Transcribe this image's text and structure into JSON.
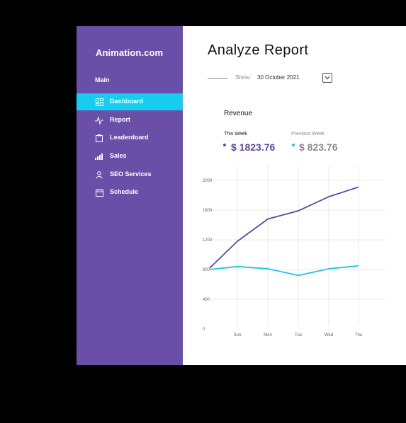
{
  "sidebar": {
    "brand": "Animation.com",
    "section": "Main",
    "items": [
      {
        "label": "Dashboard",
        "icon": "dashboard-icon",
        "active": true
      },
      {
        "label": "Report",
        "icon": "pulse-icon",
        "active": false
      },
      {
        "label": "Leaderdoard",
        "icon": "clipboard-icon",
        "active": false
      },
      {
        "label": "Sales",
        "icon": "bar-chart-icon",
        "active": false
      },
      {
        "label": "SEO Services",
        "icon": "user-icon",
        "active": false
      },
      {
        "label": "Schedule",
        "icon": "calendar-icon",
        "active": false
      }
    ]
  },
  "main": {
    "title": "Analyze Report",
    "show_label": "Show:",
    "show_value": "30 October 2021",
    "dropdown_icon": "chevron-down-icon"
  },
  "revenue": {
    "title": "Revenue",
    "this_week_label": "This Week",
    "this_week_value": "$ 1823.76",
    "previous_week_label": "Previous Week",
    "previous_week_value": "$ 823.76"
  },
  "colors": {
    "sidebar": "#6a4fa8",
    "active": "#16cdf0",
    "this_week": "#5b4a9e",
    "previous_week": "#1ac6e6"
  },
  "chart_data": {
    "type": "line",
    "x": [
      "",
      "Sun",
      "Mon",
      "Tue",
      "Wed",
      "Thu"
    ],
    "yticks": [
      0,
      400,
      800,
      1200,
      1600,
      2000
    ],
    "ylim": [
      0,
      2000
    ],
    "grid": true,
    "series": [
      {
        "values": [
          820,
          1180,
          1480,
          1590,
          1780,
          1910
        ]
      },
      {
        "values": [
          800,
          840,
          810,
          720,
          810,
          850
        ]
      }
    ]
  }
}
